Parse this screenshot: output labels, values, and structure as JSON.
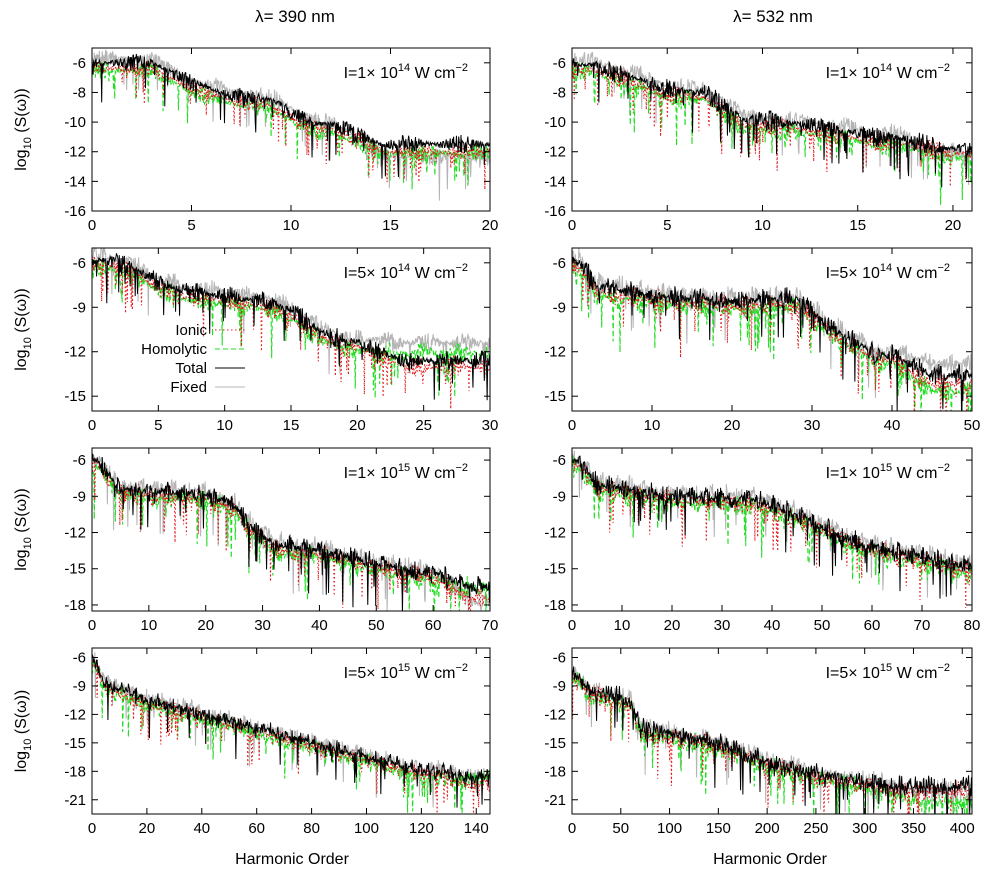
{
  "column_titles": [
    "λ= 390 nm",
    "λ= 532 nm"
  ],
  "xlabel": "Harmonic Order",
  "ylabel": "log10 (S(ω))",
  "legend": {
    "items": [
      {
        "name": "Ionic",
        "color": "#e41a1c",
        "dash": "dotted"
      },
      {
        "name": "Homolytic",
        "color": "#22dd22",
        "dash": "dashed"
      },
      {
        "name": "Total",
        "color": "#000000",
        "dash": "solid"
      },
      {
        "name": "Fixed",
        "color": "#b4b4b4",
        "dash": "solid"
      }
    ]
  },
  "chart_data": [
    {
      "type": "line",
      "id": "p390-1e14",
      "intensity": {
        "mantissa": "1",
        "exp": "14",
        "unit": "W cm",
        "unit_exp": "−2"
      },
      "xlim": [
        0,
        20
      ],
      "ylim": [
        -16,
        -5
      ],
      "xticks": [
        0,
        5,
        10,
        15,
        20
      ],
      "yticks": [
        -16,
        -14,
        -12,
        -10,
        -8,
        -6
      ],
      "xmax_data": 20,
      "features": [
        [
          1,
          -6.0
        ],
        [
          3,
          -6.0
        ],
        [
          5,
          -7.4
        ],
        [
          7,
          -8.2
        ],
        [
          9,
          -8.5
        ],
        [
          11,
          -10.1
        ]
      ],
      "floor": {
        "total": -11.5,
        "ionic": -12.0,
        "homolytic": -12.1,
        "fixed": -12.3
      },
      "cutoff": 12,
      "noise": 0.8
    },
    {
      "type": "line",
      "id": "p532-1e14",
      "intensity": {
        "mantissa": "1",
        "exp": "14",
        "unit": "W cm",
        "unit_exp": "−2"
      },
      "xlim": [
        0,
        21
      ],
      "ylim": [
        -16,
        -5
      ],
      "xticks": [
        0,
        5,
        10,
        15,
        20
      ],
      "yticks": [
        -16,
        -14,
        -12,
        -10,
        -8,
        -6
      ],
      "xmax_data": 21,
      "features": [
        [
          1,
          -6.1
        ],
        [
          4,
          -7.3
        ],
        [
          5,
          -7.8
        ],
        [
          7,
          -8.0
        ],
        [
          9,
          -9.8
        ],
        [
          11,
          -10.0
        ],
        [
          13,
          -10.3
        ],
        [
          16,
          -11.0
        ]
      ],
      "floor": {
        "total": -11.8,
        "ionic": -12.1,
        "homolytic": -12.4,
        "fixed": -12.0
      },
      "cutoff": 17,
      "noise": 0.9
    },
    {
      "type": "line",
      "id": "p390-5e14",
      "intensity": {
        "mantissa": "5",
        "exp": "14",
        "unit": "W cm",
        "unit_exp": "−2"
      },
      "xlim": [
        0,
        30
      ],
      "ylim": [
        -16,
        -5
      ],
      "xticks": [
        0,
        5,
        10,
        15,
        20,
        25,
        30
      ],
      "yticks": [
        -15,
        -12,
        -9,
        -6
      ],
      "xmax_data": 30,
      "features": [
        [
          1,
          -5.8
        ],
        [
          3,
          -6.3
        ],
        [
          5,
          -7.3
        ],
        [
          7,
          -7.9
        ],
        [
          9,
          -8.1
        ],
        [
          11,
          -8.4
        ],
        [
          13,
          -8.6
        ],
        [
          15,
          -9.2
        ],
        [
          17,
          -10.5
        ],
        [
          19,
          -11.3
        ]
      ],
      "floor": {
        "total": -12.6,
        "ionic": -13.0,
        "homolytic": -12.1,
        "fixed": -11.4
      },
      "cutoff": 20,
      "noise": 0.9
    },
    {
      "type": "line",
      "id": "p532-5e14",
      "intensity": {
        "mantissa": "5",
        "exp": "14",
        "unit": "W cm",
        "unit_exp": "−2"
      },
      "xlim": [
        0,
        50
      ],
      "ylim": [
        -16,
        -5
      ],
      "xticks": [
        0,
        10,
        20,
        30,
        40,
        50
      ],
      "yticks": [
        -15,
        -12,
        -9,
        -6
      ],
      "xmax_data": 50,
      "features": [
        [
          1,
          -6.0
        ],
        [
          3,
          -7.6
        ],
        [
          5,
          -7.8
        ],
        [
          10,
          -8.2
        ],
        [
          20,
          -8.6
        ],
        [
          28,
          -8.4
        ],
        [
          33,
          -10.6
        ],
        [
          38,
          -12.2
        ]
      ],
      "floor": {
        "total": -13.6,
        "ionic": -14.2,
        "homolytic": -14.7,
        "fixed": -12.8
      },
      "cutoff": 40,
      "noise": 1.0
    },
    {
      "type": "line",
      "id": "p390-1e15",
      "intensity": {
        "mantissa": "1",
        "exp": "15",
        "unit": "W cm",
        "unit_exp": "−2"
      },
      "xlim": [
        0,
        70
      ],
      "ylim": [
        -18.5,
        -5
      ],
      "xticks": [
        0,
        10,
        20,
        30,
        40,
        50,
        60,
        70
      ],
      "yticks": [
        -18,
        -15,
        -12,
        -9,
        -6
      ],
      "xmax_data": 70,
      "features": [
        [
          1,
          -6.0
        ],
        [
          5,
          -8.4
        ],
        [
          10,
          -8.6
        ],
        [
          20,
          -8.8
        ],
        [
          25,
          -9.7
        ],
        [
          28,
          -11.5
        ],
        [
          32,
          -13.0
        ],
        [
          40,
          -13.5
        ],
        [
          50,
          -14.5
        ],
        [
          58,
          -15.3
        ]
      ],
      "floor": {
        "total": -16.5,
        "ionic": -17.5,
        "homolytic": -16.6,
        "fixed": -17.8
      },
      "cutoff": 60,
      "noise": 1.2
    },
    {
      "type": "line",
      "id": "p532-1e15",
      "intensity": {
        "mantissa": "1",
        "exp": "15",
        "unit": "W cm",
        "unit_exp": "−2"
      },
      "xlim": [
        0,
        80
      ],
      "ylim": [
        -18.5,
        -5
      ],
      "xticks": [
        0,
        10,
        20,
        30,
        40,
        50,
        60,
        70,
        80
      ],
      "yticks": [
        -18,
        -15,
        -12,
        -9,
        -6
      ],
      "xmax_data": 80,
      "features": [
        [
          1,
          -6.0
        ],
        [
          5,
          -8.0
        ],
        [
          20,
          -9.0
        ],
        [
          35,
          -9.2
        ],
        [
          42,
          -10.0
        ],
        [
          50,
          -11.5
        ],
        [
          58,
          -13.0
        ],
        [
          70,
          -14.0
        ],
        [
          78,
          -14.8
        ]
      ],
      "floor": {
        "total": -14.8,
        "ionic": -15.2,
        "homolytic": -16.5,
        "fixed": -14.3
      },
      "cutoff": 80,
      "noise": 1.2
    },
    {
      "type": "line",
      "id": "p390-5e15",
      "intensity": {
        "mantissa": "5",
        "exp": "15",
        "unit": "W cm",
        "unit_exp": "−2"
      },
      "xlim": [
        0,
        145
      ],
      "ylim": [
        -22.5,
        -5
      ],
      "xticks": [
        0,
        20,
        40,
        60,
        80,
        100,
        120,
        140
      ],
      "yticks": [
        -21,
        -18,
        -15,
        -12,
        -9,
        -6
      ],
      "xmax_data": 145,
      "features": [
        [
          0,
          -6.0
        ],
        [
          5,
          -8.8
        ],
        [
          20,
          -10.5
        ],
        [
          40,
          -12.0
        ],
        [
          60,
          -13.5
        ],
        [
          80,
          -15.0
        ],
        [
          100,
          -16.5
        ],
        [
          120,
          -18.0
        ]
      ],
      "floor": {
        "total": -18.6,
        "ionic": -19.2,
        "homolytic": -18.8,
        "fixed": -18.4
      },
      "cutoff": 125,
      "noise": 1.3
    },
    {
      "type": "line",
      "id": "p532-5e15",
      "intensity": {
        "mantissa": "5",
        "exp": "15",
        "unit": "W cm",
        "unit_exp": "−2"
      },
      "xlim": [
        0,
        410
      ],
      "ylim": [
        -22.5,
        -5
      ],
      "xticks": [
        0,
        50,
        100,
        150,
        200,
        250,
        300,
        350,
        400
      ],
      "yticks": [
        -21,
        -18,
        -15,
        -12,
        -9,
        -6
      ],
      "xmax_data": 410,
      "features": [
        [
          0,
          -7.5
        ],
        [
          20,
          -9.5
        ],
        [
          60,
          -10.5
        ],
        [
          70,
          -13.5
        ],
        [
          150,
          -15.0
        ],
        [
          200,
          -17.0
        ],
        [
          260,
          -18.5
        ],
        [
          320,
          -19.5
        ],
        [
          350,
          -19.6
        ]
      ],
      "floor": {
        "total": -19.6,
        "ionic": -20.2,
        "homolytic": -21.2,
        "fixed": -19.8
      },
      "cutoff": 320,
      "noise": 1.5
    }
  ]
}
